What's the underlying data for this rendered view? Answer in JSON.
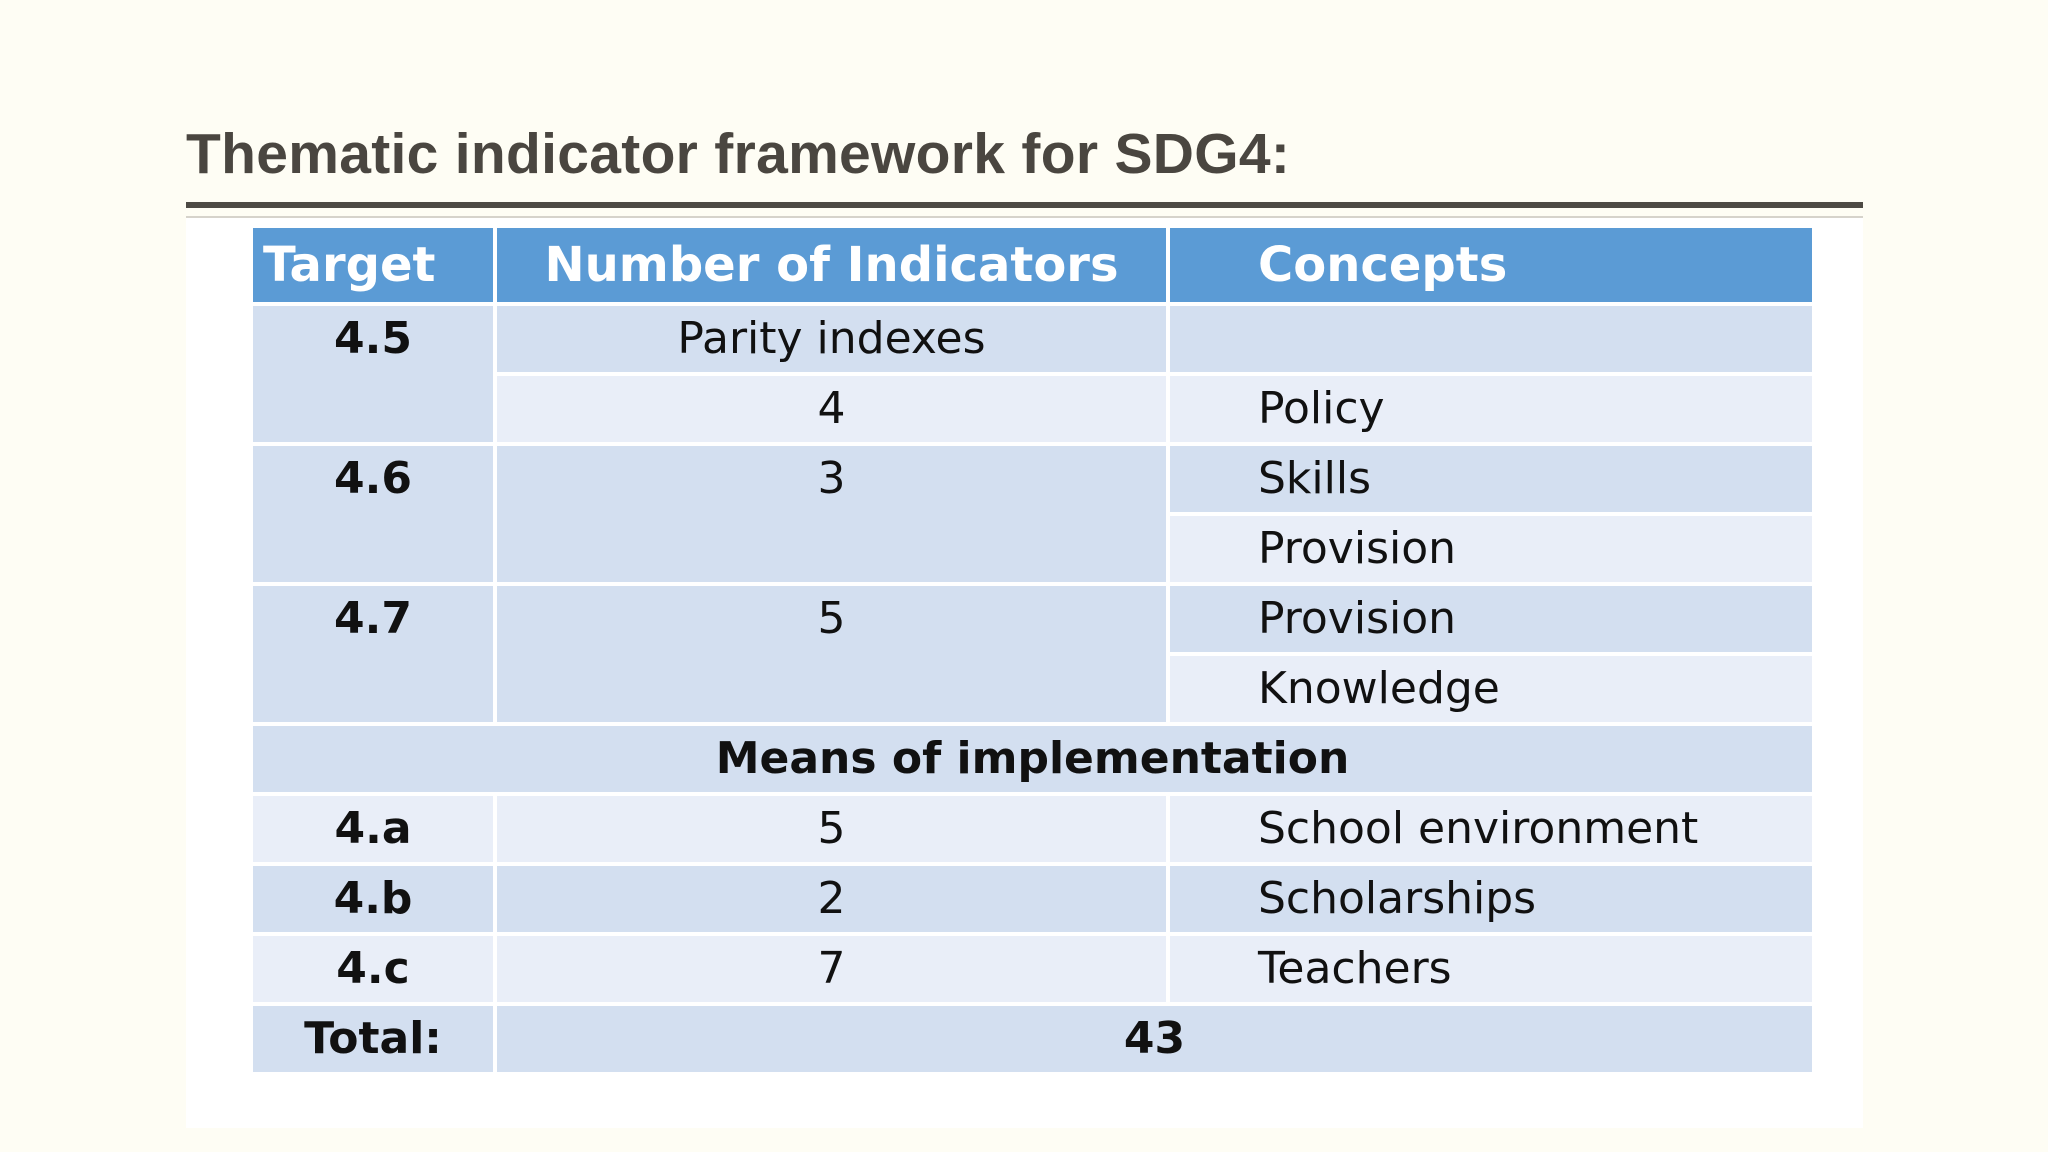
{
  "title": "Thematic indicator framework for SDG4:",
  "table": {
    "headers": {
      "target": "Target",
      "number": "Number of Indicators",
      "concepts": "Concepts"
    },
    "rows": {
      "t45": {
        "target": "4.5",
        "num_a": "Parity indexes",
        "concept_a": "",
        "num_b": "4",
        "concept_b": "Policy"
      },
      "t46": {
        "target": "4.6",
        "num": "3",
        "concept_a": "Skills",
        "concept_b": "Provision"
      },
      "t47": {
        "target": "4.7",
        "num": "5",
        "concept_a": "Provision",
        "concept_b": "Knowledge"
      }
    },
    "section_label": "Means of implementation",
    "means": {
      "t4a": {
        "target": "4.a",
        "num": "5",
        "concept": "School environment"
      },
      "t4b": {
        "target": "4.b",
        "num": "2",
        "concept": "Scholarships"
      },
      "t4c": {
        "target": "4.c",
        "num": "7",
        "concept": "Teachers"
      }
    },
    "total": {
      "label": "Total:",
      "value": "43"
    }
  },
  "colors": {
    "header_blue": "#5b9bd5",
    "row_dark": "#d3dff0",
    "row_light": "#e9eef8",
    "title_text": "#4a4640",
    "background": "#fefdf4"
  }
}
